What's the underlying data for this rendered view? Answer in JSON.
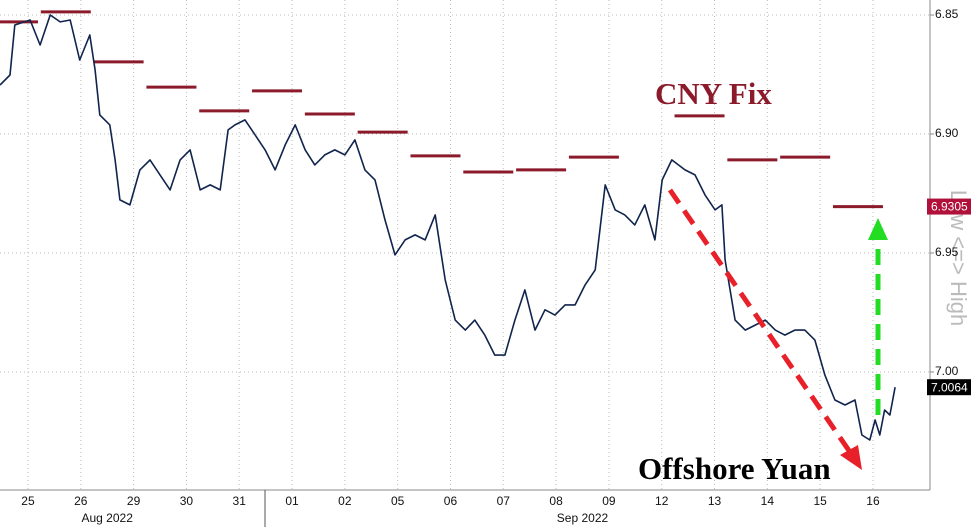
{
  "chart_data": {
    "type": "line",
    "categories": [
      "25",
      "26",
      "29",
      "30",
      "31",
      "01",
      "02",
      "05",
      "06",
      "07",
      "08",
      "09",
      "12",
      "13",
      "14",
      "15",
      "16"
    ],
    "months": [
      {
        "label": "Aug 2022",
        "at": 1.5
      },
      {
        "label": "Sep 2022",
        "at": 10.5
      }
    ],
    "xlim": [
      -0.53,
      17.08
    ],
    "ylim": [
      6.8437,
      7.0496
    ],
    "inverted": true,
    "yticks": [
      {
        "value": 6.85,
        "label": "6.85"
      },
      {
        "value": 6.9,
        "label": "6.90"
      },
      {
        "value": 6.95,
        "label": "6.95"
      },
      {
        "value": 7.0,
        "label": "7.00"
      }
    ],
    "grid": true,
    "y_axis_label": "Low <=> High",
    "series": [
      {
        "name": "CNY Fix",
        "color": "#8b1a2b",
        "kind": "step",
        "values": [
          6.8529,
          6.8487,
          6.8697,
          6.8803,
          6.8903,
          6.8819,
          6.8916,
          6.8992,
          6.9092,
          6.916,
          6.9151,
          6.9097,
          null,
          6.8924,
          6.9109,
          6.9097,
          6.9305
        ]
      },
      {
        "name": "Offshore Yuan",
        "color": "#10244d",
        "kind": "line",
        "x": [
          -0.53,
          -0.34,
          -0.25,
          0.04,
          0.23,
          0.42,
          0.61,
          0.8,
          0.98,
          1.17,
          1.27,
          1.36,
          1.55,
          1.65,
          1.74,
          1.93,
          2.12,
          2.31,
          2.5,
          2.69,
          2.88,
          3.07,
          3.26,
          3.45,
          3.64,
          3.79,
          3.92,
          4.11,
          4.3,
          4.49,
          4.68,
          4.87,
          5.06,
          5.25,
          5.43,
          5.62,
          5.81,
          6.0,
          6.19,
          6.38,
          6.57,
          6.76,
          6.95,
          7.14,
          7.33,
          7.52,
          7.71,
          7.9,
          8.09,
          8.28,
          8.46,
          8.65,
          8.84,
          9.03,
          9.22,
          9.41,
          9.6,
          9.79,
          9.98,
          10.17,
          10.36,
          10.55,
          10.74,
          10.93,
          11.12,
          11.3,
          11.49,
          11.68,
          11.87,
          12.01,
          12.19,
          12.44,
          12.63,
          12.82,
          13.01,
          13.14,
          13.2,
          13.39,
          13.58,
          13.77,
          13.96,
          14.15,
          14.33,
          14.52,
          14.71,
          14.9,
          15.09,
          15.28,
          15.47,
          15.66,
          15.79,
          15.94,
          16.04,
          16.13,
          16.22,
          16.32,
          16.42
        ],
        "values": [
          6.8794,
          6.8752,
          6.8542,
          6.8521,
          6.8626,
          6.85,
          6.8529,
          6.8521,
          6.8689,
          6.8584,
          6.8731,
          6.892,
          6.8962,
          6.9109,
          6.9277,
          6.9298,
          6.9151,
          6.9109,
          6.9172,
          6.9235,
          6.9109,
          6.9067,
          6.9235,
          6.9214,
          6.9235,
          6.8983,
          6.8962,
          6.8941,
          6.9004,
          6.9067,
          6.9151,
          6.9046,
          6.8962,
          6.9067,
          6.913,
          6.9088,
          6.9067,
          6.9088,
          6.9025,
          6.9151,
          6.9193,
          6.9361,
          6.9508,
          6.9445,
          6.9424,
          6.9445,
          6.934,
          6.9613,
          6.9782,
          6.9824,
          6.9782,
          6.9845,
          6.9929,
          6.9929,
          6.9782,
          6.9655,
          6.9824,
          6.9739,
          6.9761,
          6.9718,
          6.9718,
          6.9634,
          6.9571,
          6.9214,
          6.9319,
          6.934,
          6.9382,
          6.9298,
          6.9445,
          6.9193,
          6.9109,
          6.9151,
          6.9172,
          6.9256,
          6.9319,
          6.9298,
          6.9529,
          6.9782,
          6.9824,
          6.9803,
          6.9782,
          6.9824,
          6.9845,
          6.9824,
          6.9824,
          6.9866,
          7.0013,
          7.0118,
          7.0139,
          7.0118,
          7.0265,
          7.0286,
          7.0202,
          7.0265,
          7.016,
          7.0181,
          7.0064
        ]
      }
    ],
    "price_tags": [
      {
        "value": 6.9305,
        "color": "#b0103a"
      },
      {
        "value": 7.0064,
        "color": "#000000"
      }
    ]
  }
}
